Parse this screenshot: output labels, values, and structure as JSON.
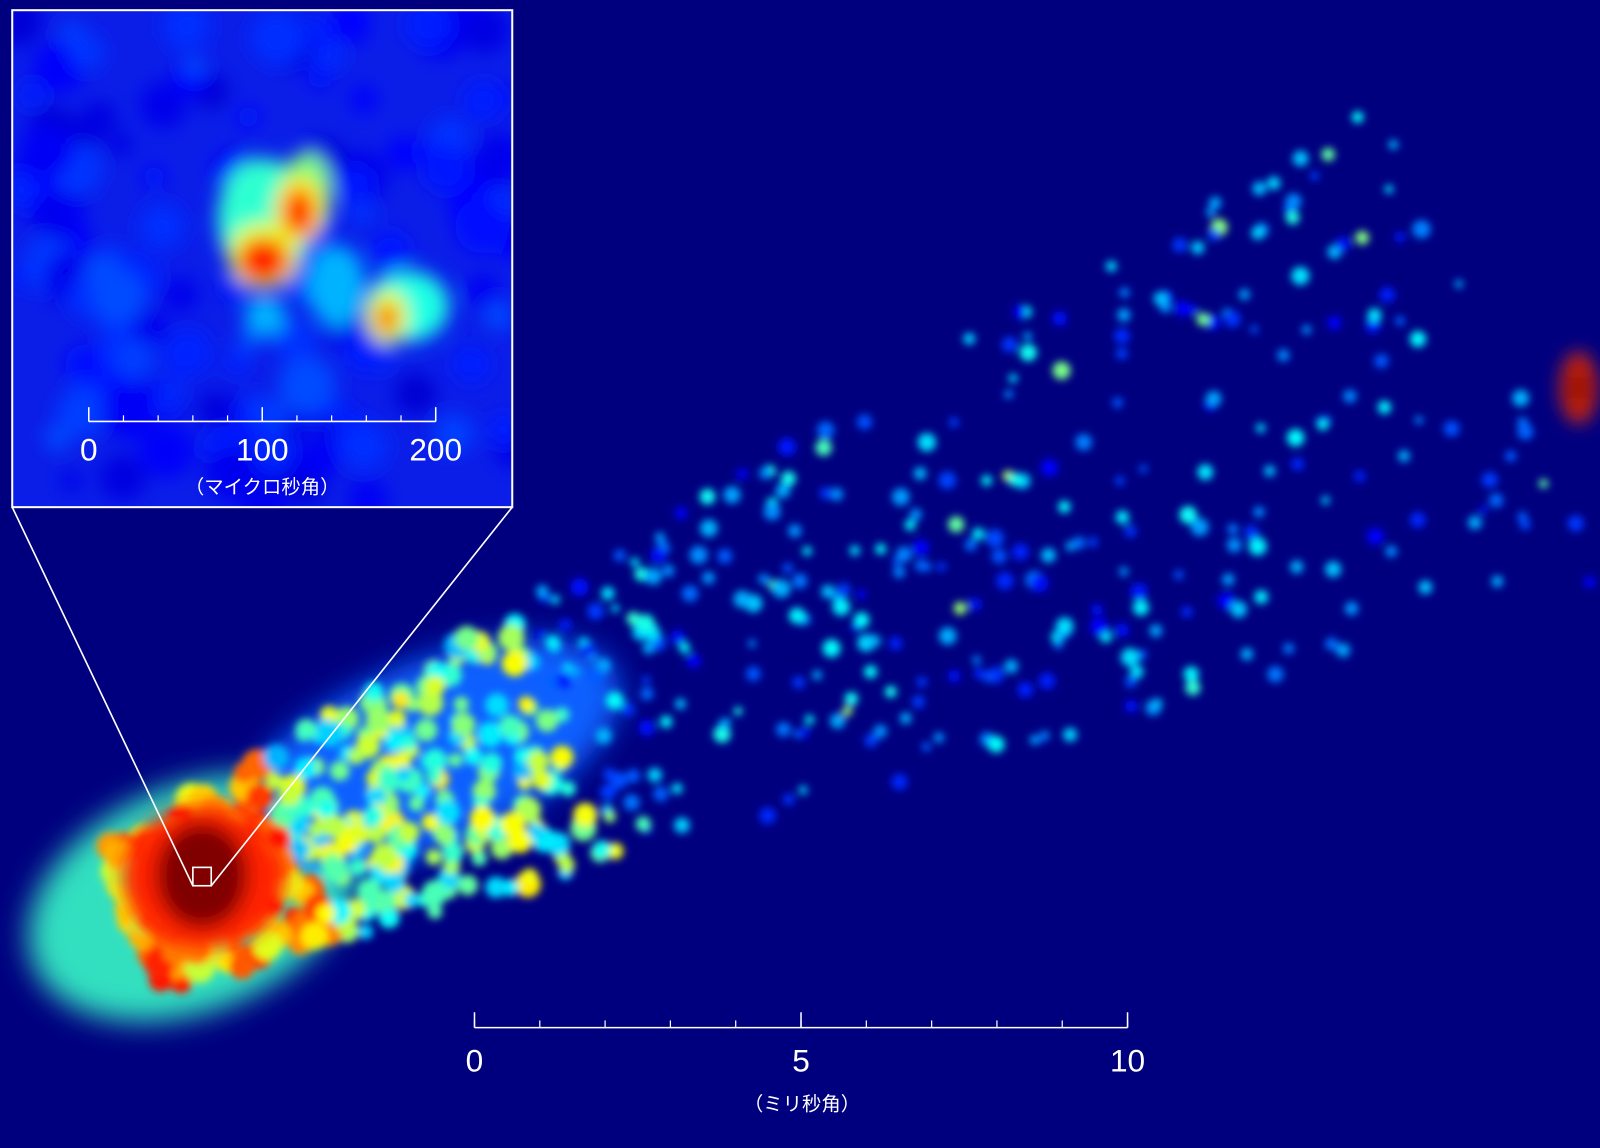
{
  "inset": {
    "scale": {
      "ticks": [
        0,
        100,
        200
      ],
      "unit": "（マイクロ秒角）"
    }
  },
  "scale": {
    "ticks": [
      0,
      5,
      10
    ],
    "unit": "（ミリ秒角）"
  }
}
